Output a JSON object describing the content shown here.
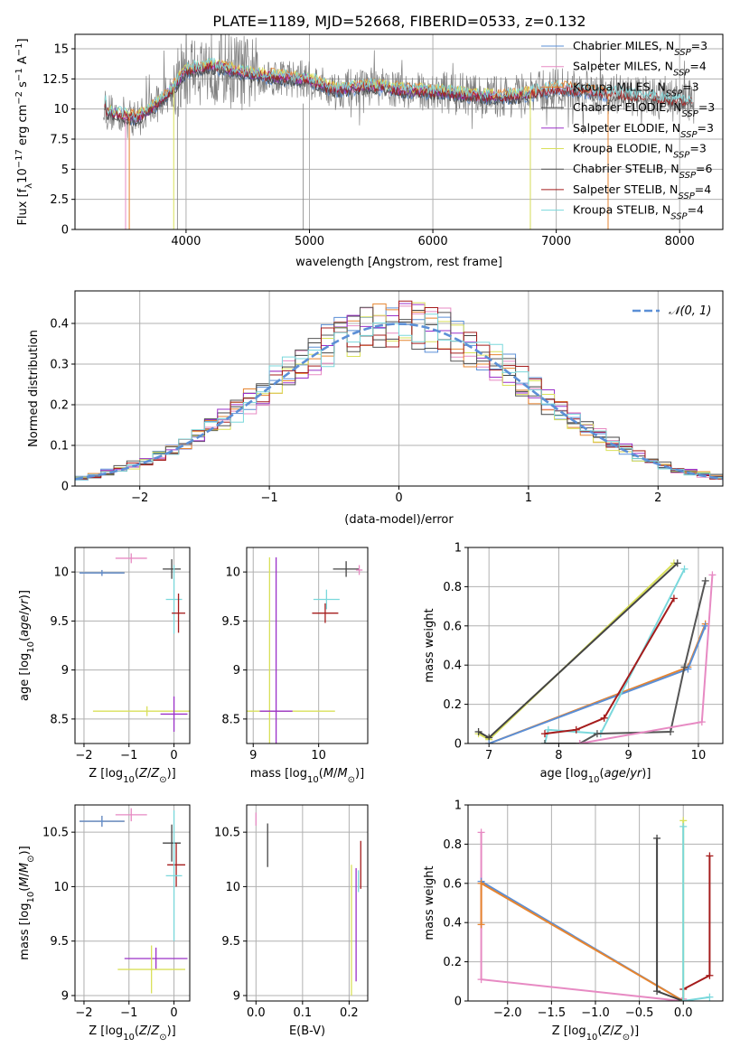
{
  "title": "PLATE=1189, MJD=52668, FIBERID=0533, z=0.132",
  "colors": {
    "chabrier_miles": "#5b8fd6",
    "salpeter_miles": "#e78ac3",
    "kroupa_miles": "#e6842f",
    "chabrier_elodie": "#444444",
    "salpeter_elodie": "#9b30c8",
    "kroupa_elodie": "#d9e05a",
    "chabrier_stelib": "#555555",
    "salpeter_stelib": "#a51c1c",
    "kroupa_stelib": "#7ad8dc",
    "gauss": "#5b8fd6",
    "spectrum": "#808080",
    "grid": "#b0b0b0"
  },
  "chart_data": [
    {
      "type": "line",
      "xlabel": "wavelength [Angstrom, rest frame]",
      "ylabel": "Flux [f",
      "xlim": [
        3100,
        8350
      ],
      "ylim": [
        0,
        16.2
      ],
      "xticks": [
        4000,
        5000,
        6000,
        7000,
        8000
      ],
      "yticks": [
        0.0,
        2.5,
        5.0,
        7.5,
        10.0,
        12.5,
        15.0
      ],
      "legend": [
        "Chabrier MILES, N",
        "Salpeter MILES, N",
        "Kroupa MILES, N",
        "Chabrier ELODIE, N",
        "Salpeter ELODIE, N",
        "Kroupa ELODIE, N",
        "Chabrier STELIB, N",
        "Salpeter STELIB, N",
        "Kroupa STELIB, N"
      ],
      "legend_nssp": [
        "=3",
        "=4",
        "=3",
        "=3",
        "=3",
        "=3",
        "=6",
        "=4",
        "=4"
      ],
      "continuum": {
        "x": [
          3350,
          3450,
          3600,
          3750,
          3900,
          4000,
          4200,
          4500,
          4800,
          5000,
          5200,
          5500,
          5800,
          6100,
          6400,
          6700,
          7000,
          7300,
          7600,
          8000,
          8100
        ],
        "y": [
          9.8,
          9.6,
          9.2,
          10.3,
          11.8,
          13.2,
          13.6,
          12.9,
          12.6,
          12.4,
          11.6,
          11.9,
          11.5,
          11.4,
          11.0,
          11.1,
          11.7,
          11.4,
          11.1,
          10.7,
          10.6
        ]
      },
      "legend_position": "upper-right"
    },
    {
      "type": "histogram",
      "xlabel": "(data-model)/error",
      "ylabel": "Normed distribution",
      "xlim": [
        -2.5,
        2.5
      ],
      "ylim": [
        0,
        0.48
      ],
      "xticks": [
        -2,
        -1,
        0,
        1,
        2
      ],
      "yticks": [
        0.0,
        0.1,
        0.2,
        0.3,
        0.4
      ],
      "legend": [
        "𝒩(0, 1)"
      ],
      "legend_position": "upper-right",
      "bin_width": 0.1
    },
    {
      "type": "scatter",
      "xlabel": "Z [log",
      "ylabel": "age  [log",
      "xlim": [
        -2.2,
        0.35
      ],
      "ylim": [
        8.25,
        10.25
      ],
      "xticks": [
        -2,
        -1,
        0
      ],
      "yticks": [
        8.5,
        9.0,
        9.5,
        10.0
      ],
      "points": [
        {
          "c": "kroupa_miles",
          "x": -1.6,
          "y": 9.99,
          "xerr": 0.5,
          "yerr": 0.03
        },
        {
          "c": "chabrier_miles",
          "x": -1.6,
          "y": 9.99,
          "xerr": 0.5,
          "yerr": 0.03
        },
        {
          "c": "salpeter_miles",
          "x": -0.95,
          "y": 10.14,
          "xerr": 0.35,
          "yerr": 0.05
        },
        {
          "c": "chabrier_elodie",
          "x": -0.05,
          "y": 10.03,
          "xerr": 0.2,
          "yerr": 0.1
        },
        {
          "c": "kroupa_stelib",
          "x": 0.0,
          "y": 9.72,
          "xerr": 0.18,
          "yerr": 0.35
        },
        {
          "c": "salpeter_stelib",
          "x": 0.1,
          "y": 9.58,
          "xerr": 0.15,
          "yerr": 0.2
        },
        {
          "c": "kroupa_elodie",
          "x": -0.6,
          "y": 8.58,
          "xerr": 1.2,
          "yerr": 0.05
        },
        {
          "c": "salpeter_elodie",
          "x": 0.0,
          "y": 8.55,
          "xerr": 0.3,
          "yerr": 0.18
        }
      ]
    },
    {
      "type": "scatter",
      "xlabel": "mass [log",
      "ylabel": "",
      "xlim": [
        8.9,
        10.75
      ],
      "ylim": [
        8.25,
        10.25
      ],
      "xticks": [
        9,
        10
      ],
      "yticks": [
        8.5,
        9.0,
        9.5,
        10.0
      ],
      "points": [
        {
          "c": "kroupa_elodie",
          "x": 9.25,
          "y": 8.58,
          "xerr": 1.0,
          "yerr": 1.57
        },
        {
          "c": "salpeter_elodie",
          "x": 9.35,
          "y": 8.58,
          "xerr": 0.25,
          "yerr": 1.57
        },
        {
          "c": "chabrier_elodie",
          "x": 10.42,
          "y": 10.03,
          "xerr": 0.2,
          "yerr": 0.08
        },
        {
          "c": "salpeter_miles",
          "x": 10.62,
          "y": 10.02,
          "xerr": 0.05,
          "yerr": 0.05
        },
        {
          "c": "kroupa_stelib",
          "x": 10.12,
          "y": 9.72,
          "xerr": 0.2,
          "yerr": 0.1
        },
        {
          "c": "salpeter_stelib",
          "x": 10.1,
          "y": 9.58,
          "xerr": 0.2,
          "yerr": 0.1
        }
      ]
    },
    {
      "type": "line",
      "xlabel": "age  [log",
      "ylabel": "mass weight",
      "xlim": [
        6.7,
        10.35
      ],
      "ylim": [
        0,
        1.0
      ],
      "xticks": [
        7,
        8,
        9,
        10
      ],
      "yticks": [
        0.0,
        0.2,
        0.4,
        0.6,
        0.8,
        1.0
      ],
      "series": [
        {
          "c": "kroupa_elodie",
          "x": [
            6.85,
            7.0,
            9.65
          ],
          "y": [
            0.05,
            0.02,
            0.92
          ]
        },
        {
          "c": "chabrier_elodie",
          "x": [
            6.85,
            7.0,
            9.7
          ],
          "y": [
            0.06,
            0.03,
            0.92
          ]
        },
        {
          "c": "kroupa_miles",
          "x": [
            7.0,
            9.85,
            10.1
          ],
          "y": [
            0.0,
            0.39,
            0.61
          ]
        },
        {
          "c": "chabrier_miles",
          "x": [
            7.0,
            9.85,
            10.1
          ],
          "y": [
            0.0,
            0.38,
            0.6
          ]
        },
        {
          "c": "kroupa_stelib",
          "x": [
            7.8,
            7.85,
            8.6,
            9.8
          ],
          "y": [
            0.0,
            0.07,
            0.05,
            0.89
          ]
        },
        {
          "c": "salpeter_stelib",
          "x": [
            7.8,
            8.25,
            8.65,
            9.65
          ],
          "y": [
            0.05,
            0.07,
            0.13,
            0.74
          ]
        },
        {
          "c": "chabrier_stelib",
          "x": [
            7.8,
            8.3,
            8.55,
            9.6,
            9.8,
            10.1
          ],
          "y": [
            0.0,
            0.0,
            0.05,
            0.06,
            0.39,
            0.83
          ]
        },
        {
          "c": "salpeter_miles",
          "x": [
            8.3,
            10.05,
            10.2
          ],
          "y": [
            0.0,
            0.11,
            0.86
          ]
        }
      ]
    },
    {
      "type": "scatter",
      "xlabel": "Z [log",
      "ylabel": "mass [log",
      "xlim": [
        -2.2,
        0.35
      ],
      "ylim": [
        8.95,
        10.75
      ],
      "xticks": [
        -2,
        -1,
        0
      ],
      "yticks": [
        9.0,
        9.5,
        10.0,
        10.5
      ],
      "points": [
        {
          "c": "kroupa_miles",
          "x": -1.6,
          "y": 10.6,
          "xerr": 0.5,
          "yerr": 0.05
        },
        {
          "c": "chabrier_miles",
          "x": -1.6,
          "y": 10.6,
          "xerr": 0.5,
          "yerr": 0.05
        },
        {
          "c": "salpeter_miles",
          "x": -0.95,
          "y": 10.66,
          "xerr": 0.35,
          "yerr": 0.06
        },
        {
          "c": "chabrier_elodie",
          "x": -0.05,
          "y": 10.4,
          "xerr": 0.2,
          "yerr": 0.17
        },
        {
          "c": "salpeter_stelib",
          "x": 0.05,
          "y": 10.2,
          "xerr": 0.2,
          "yerr": 0.2
        },
        {
          "c": "kroupa_stelib",
          "x": 0.0,
          "y": 10.1,
          "xerr": 0.18,
          "yerr": 0.6
        },
        {
          "c": "salpeter_elodie",
          "x": -0.4,
          "y": 9.34,
          "xerr": 0.7,
          "yerr": 0.1
        },
        {
          "c": "kroupa_elodie",
          "x": -0.5,
          "y": 9.24,
          "xerr": 0.75,
          "yerr": 0.22
        }
      ]
    },
    {
      "type": "scatter",
      "xlabel": "E(B-V)",
      "ylabel": "",
      "xlim": [
        -0.02,
        0.24
      ],
      "ylim": [
        8.95,
        10.75
      ],
      "xticks": [
        0.0,
        0.1,
        0.2
      ],
      "xticklabels": [
        "0.0",
        "0.1",
        "0.2"
      ],
      "yticks": [
        9.0,
        9.5,
        10.0,
        10.5
      ],
      "points": [
        {
          "c": "salpeter_miles",
          "x": 0.0,
          "y": 10.62,
          "yerr": 0.06
        },
        {
          "c": "chabrier_elodie",
          "x": 0.025,
          "y": 10.38,
          "yerr": 0.2
        },
        {
          "c": "kroupa_elodie",
          "x": 0.205,
          "y": 9.6,
          "yerr": 0.6
        },
        {
          "c": "salpeter_elodie",
          "x": 0.215,
          "y": 9.65,
          "yerr": 0.52
        },
        {
          "c": "salpeter_stelib",
          "x": 0.225,
          "y": 10.2,
          "yerr": 0.22
        },
        {
          "c": "kroupa_stelib",
          "x": 0.22,
          "y": 10.05,
          "yerr": 0.1
        }
      ]
    },
    {
      "type": "line",
      "xlabel": "Z [log",
      "ylabel": "mass weight",
      "xlim": [
        -2.45,
        0.45
      ],
      "ylim": [
        0,
        1.0
      ],
      "xticks": [
        -2.0,
        -1.5,
        -1.0,
        -0.5,
        0.0
      ],
      "xticklabels": [
        "−2.0",
        "−1.5",
        "−1.0",
        "−0.5",
        "0.0"
      ],
      "yticks": [
        0.0,
        0.2,
        0.4,
        0.6,
        0.8,
        1.0
      ],
      "series": [
        {
          "c": "salpeter_miles",
          "x": [
            -2.3,
            -2.3,
            -0.02,
            0.0
          ],
          "y": [
            0.86,
            0.11,
            0.0,
            0.01
          ]
        },
        {
          "c": "chabrier_miles",
          "x": [
            -2.3,
            0.0
          ],
          "y": [
            0.61,
            0.0
          ]
        },
        {
          "c": "kroupa_miles",
          "x": [
            -2.3,
            -2.3,
            0.0
          ],
          "y": [
            0.39,
            0.6,
            0.0
          ]
        },
        {
          "c": "chabrier_elodie",
          "x": [
            -0.3,
            -0.3,
            0.0
          ],
          "y": [
            0.83,
            0.05,
            0.0
          ]
        },
        {
          "c": "salpeter_stelib",
          "x": [
            0.3,
            0.3,
            0.0,
            0.0
          ],
          "y": [
            0.74,
            0.13,
            0.06,
            0.0
          ]
        },
        {
          "c": "kroupa_elodie",
          "x": [
            0.0,
            0.0
          ],
          "y": [
            0.92,
            0.0
          ]
        },
        {
          "c": "kroupa_stelib",
          "x": [
            0.0,
            0.0,
            0.3
          ],
          "y": [
            0.89,
            0.0,
            0.02
          ]
        }
      ]
    }
  ]
}
